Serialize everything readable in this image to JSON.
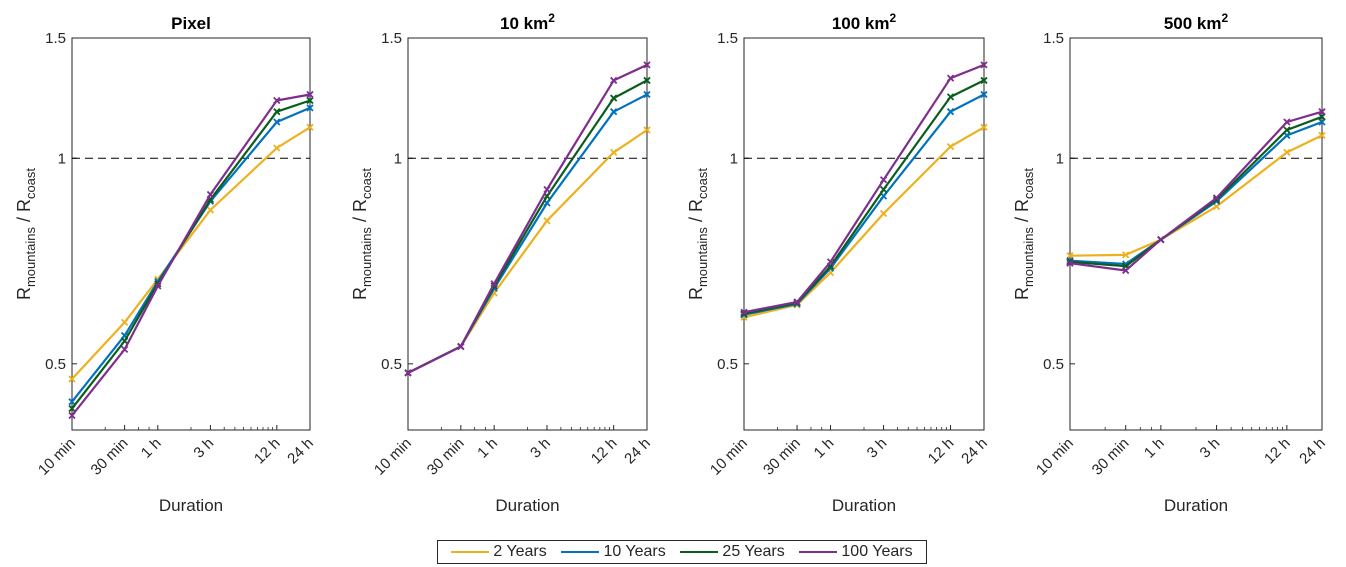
{
  "chart_data": [
    {
      "type": "line",
      "title": "Pixel",
      "title_sup": "",
      "xlabel": "Duration",
      "ylabel_main": "R",
      "ylabel_sub1": "mountains",
      "ylabel_mid": " / R",
      "ylabel_sub2": "coast",
      "y_scale": "log",
      "ylim": [
        0.4,
        1.5
      ],
      "yticks": [
        0.5,
        1,
        1.5
      ],
      "ytick_labels": [
        "0.5",
        "1",
        "1.5"
      ],
      "reference_line": 1,
      "x_scale": "log",
      "x_minutes": [
        10,
        30,
        60,
        180,
        720,
        1440
      ],
      "xtick_labels": [
        "10 min",
        "30 min",
        "1 h",
        "3 h",
        "12 h",
        "24 h"
      ],
      "series": [
        {
          "name": "2 Years",
          "values": [
            0.475,
            0.575,
            0.665,
            0.84,
            1.035,
            1.11
          ]
        },
        {
          "name": "10 Years",
          "values": [
            0.44,
            0.55,
            0.66,
            0.865,
            1.13,
            1.185
          ]
        },
        {
          "name": "25 Years",
          "values": [
            0.43,
            0.54,
            0.655,
            0.87,
            1.17,
            1.215
          ]
        },
        {
          "name": "100 Years",
          "values": [
            0.42,
            0.525,
            0.65,
            0.885,
            1.215,
            1.24
          ]
        }
      ]
    },
    {
      "type": "line",
      "title": "10 km",
      "title_sup": "2",
      "xlabel": "Duration",
      "ylabel_main": "R",
      "ylabel_sub1": "mountains",
      "ylabel_mid": " / R",
      "ylabel_sub2": "coast",
      "y_scale": "log",
      "ylim": [
        0.4,
        1.5
      ],
      "yticks": [
        0.5,
        1,
        1.5
      ],
      "ytick_labels": [
        "0.5",
        "1",
        "1.5"
      ],
      "reference_line": 1,
      "x_scale": "log",
      "x_minutes": [
        10,
        30,
        60,
        180,
        720,
        1440
      ],
      "xtick_labels": [
        "10 min",
        "30 min",
        "1 h",
        "3 h",
        "12 h",
        "24 h"
      ],
      "series": [
        {
          "name": "2 Years",
          "values": [
            0.485,
            0.53,
            0.635,
            0.81,
            1.02,
            1.1
          ]
        },
        {
          "name": "10 Years",
          "values": [
            0.485,
            0.53,
            0.645,
            0.86,
            1.17,
            1.24
          ]
        },
        {
          "name": "25 Years",
          "values": [
            0.485,
            0.53,
            0.65,
            0.88,
            1.225,
            1.3
          ]
        },
        {
          "name": "100 Years",
          "values": [
            0.485,
            0.53,
            0.655,
            0.9,
            1.3,
            1.37
          ]
        }
      ]
    },
    {
      "type": "line",
      "title": "100 km",
      "title_sup": "2",
      "xlabel": "Duration",
      "ylabel_main": "R",
      "ylabel_sub1": "mountains",
      "ylabel_mid": " / R",
      "ylabel_sub2": "coast",
      "y_scale": "log",
      "ylim": [
        0.4,
        1.5
      ],
      "yticks": [
        0.5,
        1,
        1.5
      ],
      "ytick_labels": [
        "0.5",
        "1",
        "1.5"
      ],
      "reference_line": 1,
      "x_scale": "log",
      "x_minutes": [
        10,
        30,
        60,
        180,
        720,
        1440
      ],
      "xtick_labels": [
        "10 min",
        "30 min",
        "1 h",
        "3 h",
        "12 h",
        "24 h"
      ],
      "series": [
        {
          "name": "2 Years",
          "values": [
            0.585,
            0.61,
            0.68,
            0.83,
            1.04,
            1.11
          ]
        },
        {
          "name": "10 Years",
          "values": [
            0.59,
            0.612,
            0.69,
            0.88,
            1.17,
            1.24
          ]
        },
        {
          "name": "25 Years",
          "values": [
            0.592,
            0.614,
            0.695,
            0.9,
            1.23,
            1.3
          ]
        },
        {
          "name": "100 Years",
          "values": [
            0.595,
            0.616,
            0.705,
            0.93,
            1.31,
            1.37
          ]
        }
      ]
    },
    {
      "type": "line",
      "title": "500 km",
      "title_sup": "2",
      "xlabel": "Duration",
      "ylabel_main": "R",
      "ylabel_sub1": "mountains",
      "ylabel_mid": " / R",
      "ylabel_sub2": "coast",
      "y_scale": "log",
      "ylim": [
        0.4,
        1.5
      ],
      "yticks": [
        0.5,
        1,
        1.5
      ],
      "ytick_labels": [
        "0.5",
        "1",
        "1.5"
      ],
      "reference_line": 1,
      "x_scale": "log",
      "x_minutes": [
        10,
        30,
        60,
        180,
        720,
        1440
      ],
      "xtick_labels": [
        "10 min",
        "30 min",
        "1 h",
        "3 h",
        "12 h",
        "24 h"
      ],
      "series": [
        {
          "name": "2 Years",
          "values": [
            0.72,
            0.722,
            0.76,
            0.85,
            1.02,
            1.08
          ]
        },
        {
          "name": "10 Years",
          "values": [
            0.708,
            0.7,
            0.76,
            0.865,
            1.08,
            1.13
          ]
        },
        {
          "name": "25 Years",
          "values": [
            0.705,
            0.695,
            0.76,
            0.87,
            1.1,
            1.15
          ]
        },
        {
          "name": "100 Years",
          "values": [
            0.702,
            0.685,
            0.76,
            0.875,
            1.13,
            1.17
          ]
        }
      ]
    }
  ],
  "legend": {
    "placement": "bottom-center",
    "entries": [
      {
        "label": "2 Years",
        "color": "#EDB120"
      },
      {
        "label": "10 Years",
        "color": "#0072BD"
      },
      {
        "label": "25 Years",
        "color": "#0B5D1E"
      },
      {
        "label": "100 Years",
        "color": "#7E2F8E"
      }
    ]
  },
  "colors": {
    "axis": "#262626",
    "reference_line": "#000000"
  }
}
